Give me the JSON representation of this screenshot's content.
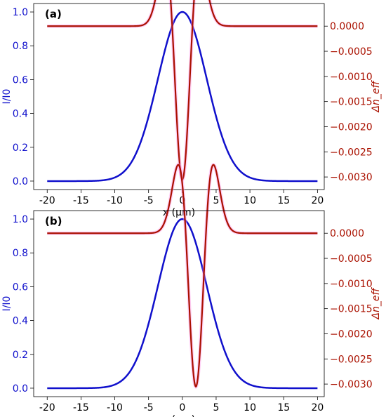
{
  "colors": {
    "intensity": "#1010cc",
    "delta_n": "#aa1100",
    "delta_n_halo": "#ff99ee",
    "axis": "#000000"
  },
  "chart_data": [
    {
      "type": "line",
      "panel_label": "(a)",
      "xlabel": "x (μm)",
      "ylabel_left": "I/I0",
      "ylabel_right": "Δn_eff",
      "xlim": [
        -22,
        21
      ],
      "ylim_left": [
        -0.05,
        1.05
      ],
      "ylim_right": [
        -0.00325,
        0.00045
      ],
      "x_ticks": [
        "-20",
        "-15",
        "-10",
        "-5",
        "0",
        "5",
        "10",
        "15",
        "20"
      ],
      "y_left_ticks": [
        "0.0",
        "0.2",
        "0.4",
        "0.6",
        "0.8",
        "1.0"
      ],
      "y_right_ticks": [
        "0.0000",
        "−0.0005",
        "−0.0010",
        "−0.0015",
        "−0.0020",
        "−0.0025",
        "−0.0030"
      ],
      "grid": false,
      "series": [
        {
          "axis": "left",
          "curve": "gaussian",
          "amplitude": 1.0,
          "center": 0.0,
          "sigma": 3.6,
          "offset": 0.0
        },
        {
          "axis": "right",
          "curve": "gaussian_derivative2",
          "amplitude": -0.00305,
          "center": 0.0,
          "sigma": 1.5,
          "offset": 0.0
        }
      ]
    },
    {
      "type": "line",
      "panel_label": "(b)",
      "xlabel": "x (μm)",
      "ylabel_left": "I/I0",
      "ylabel_right": "Δn_eff",
      "xlim": [
        -22,
        21
      ],
      "ylim_left": [
        -0.05,
        1.05
      ],
      "ylim_right": [
        -0.00325,
        0.00045
      ],
      "x_ticks": [
        "-20",
        "-15",
        "-10",
        "-5",
        "0",
        "5",
        "10",
        "15",
        "20"
      ],
      "y_left_ticks": [
        "0.0",
        "0.2",
        "0.4",
        "0.6",
        "0.8",
        "1.0"
      ],
      "y_right_ticks": [
        "0.0000",
        "−0.0005",
        "−0.0010",
        "−0.0015",
        "−0.0020",
        "−0.0025",
        "−0.0030"
      ],
      "grid": false,
      "series": [
        {
          "axis": "left",
          "curve": "gaussian",
          "amplitude": 1.0,
          "center": 0.0,
          "sigma": 3.6,
          "offset": 0.0
        },
        {
          "axis": "right",
          "curve": "gaussian_derivative2",
          "amplitude": -0.00305,
          "center": 2.0,
          "sigma": 1.5,
          "offset": 0.0
        }
      ]
    }
  ]
}
